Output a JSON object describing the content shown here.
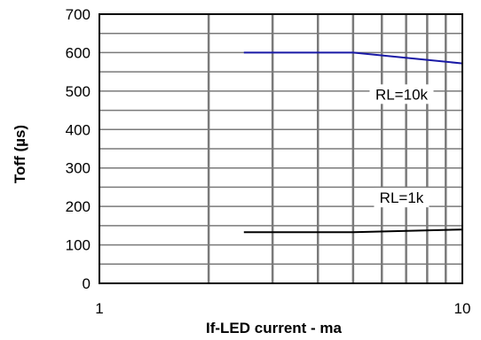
{
  "chart_data": {
    "type": "line",
    "title": "",
    "xlabel": "If-LED current - ma",
    "ylabel": "Toff (µs)",
    "x_scale": "log",
    "xlim": [
      1,
      10
    ],
    "ylim": [
      0,
      700
    ],
    "x_tick_labels": [
      {
        "value": 1,
        "label": "1"
      },
      {
        "value": 10,
        "label": "10"
      }
    ],
    "y_ticks": [
      0,
      100,
      200,
      300,
      400,
      500,
      600,
      700
    ],
    "grid": true,
    "grid_x_values": [
      2,
      3,
      4,
      5,
      6,
      7,
      8,
      9
    ],
    "grid_y_values": [
      50,
      100,
      150,
      200,
      250,
      300,
      350,
      400,
      450,
      500,
      550,
      600,
      650
    ],
    "series": [
      {
        "name": "RL=10k",
        "color": "#1a1aa6",
        "x": [
          2.5,
          5,
          10
        ],
        "y": [
          600,
          600,
          572
        ]
      },
      {
        "name": "RL=1k",
        "color": "#000000",
        "x": [
          2.5,
          5,
          10
        ],
        "y": [
          133,
          133,
          140
        ]
      }
    ],
    "annotations": [
      {
        "text": "RL=10k",
        "x": 6.8,
        "y": 492
      },
      {
        "text": "RL=1k",
        "x": 6.8,
        "y": 223
      }
    ]
  }
}
